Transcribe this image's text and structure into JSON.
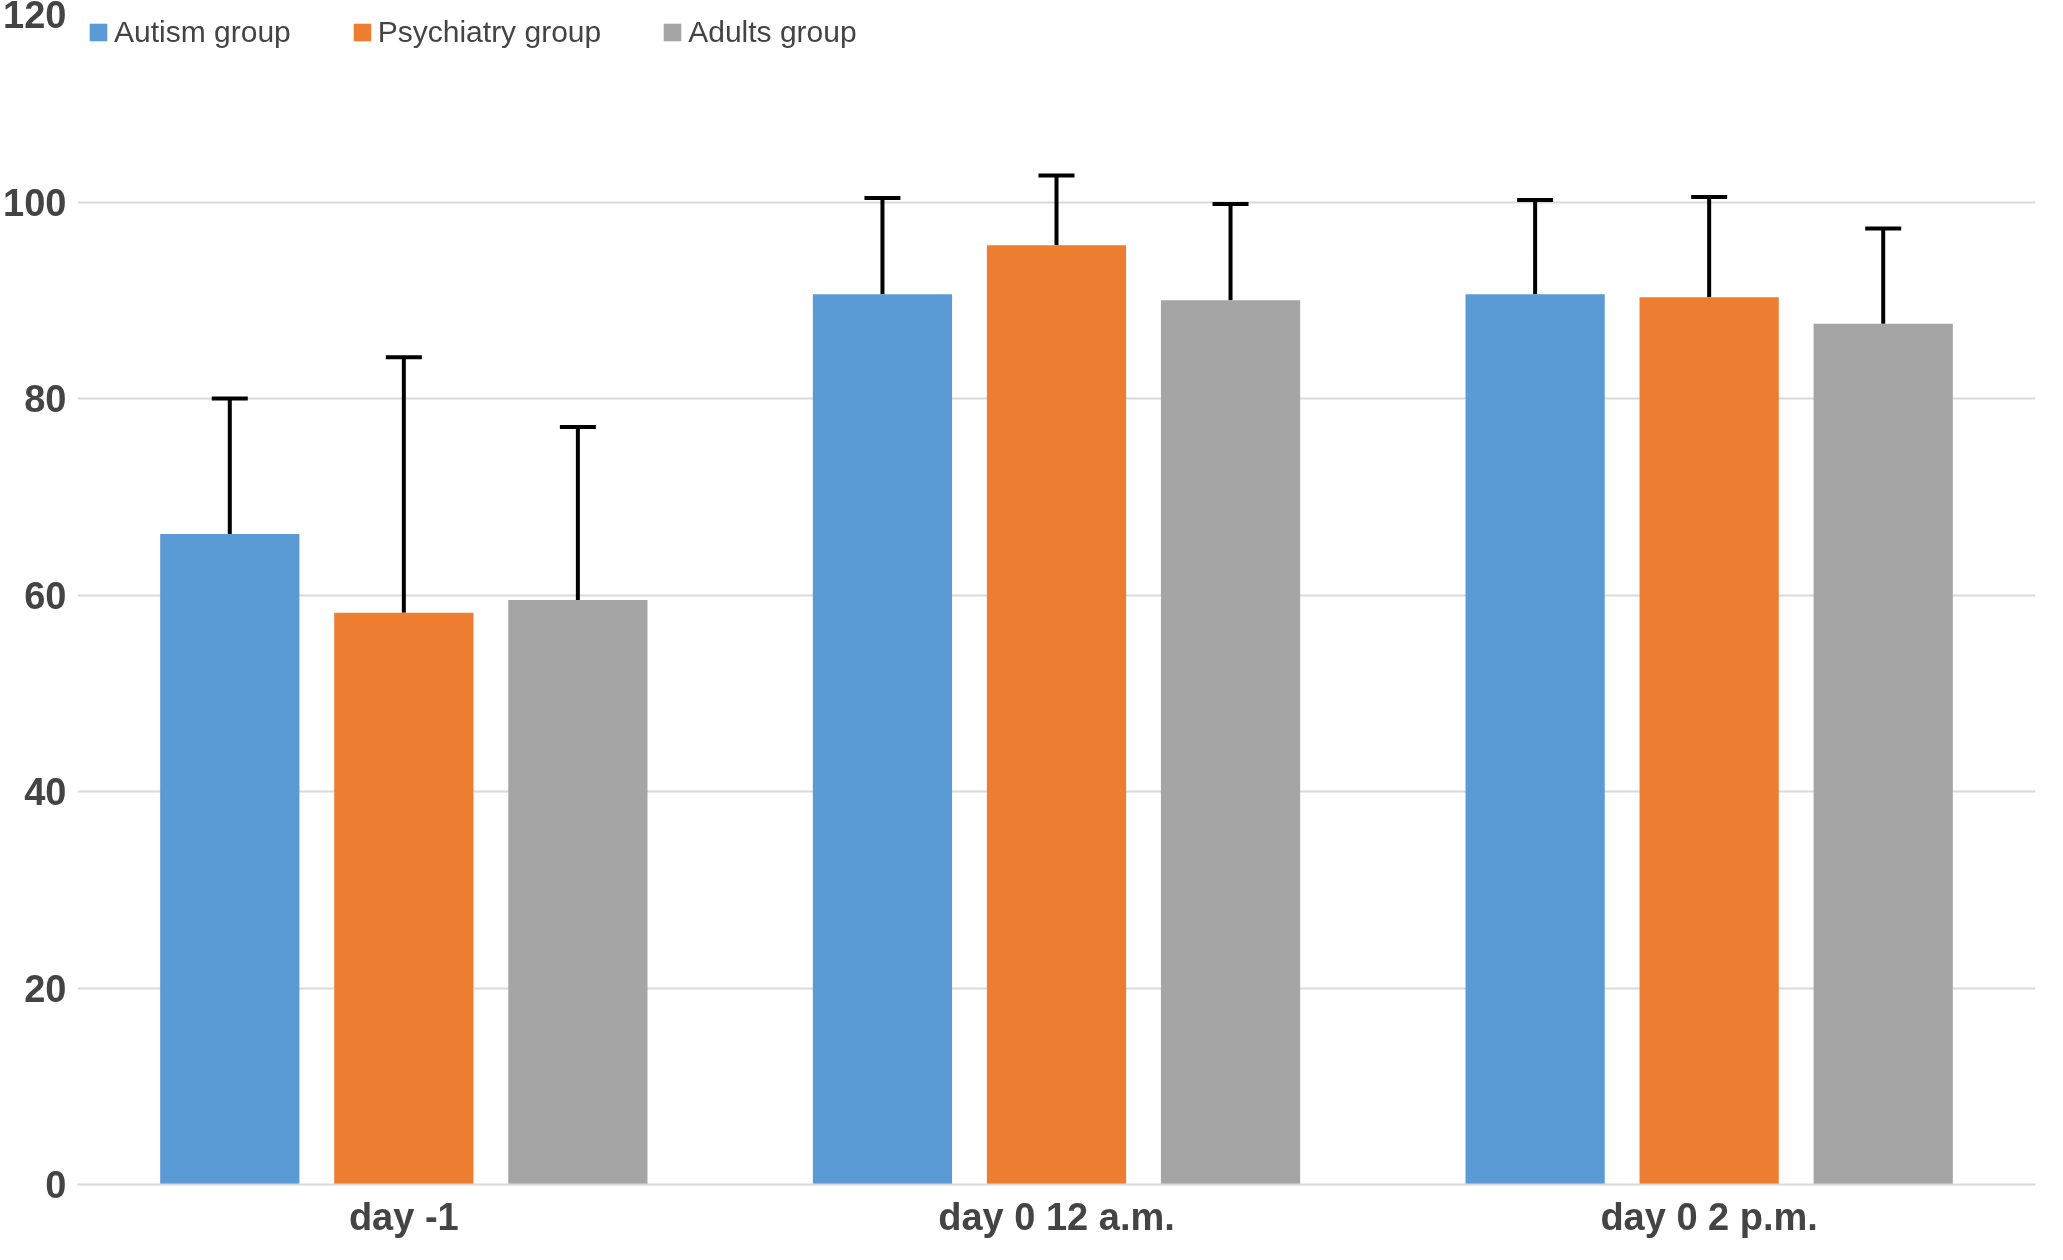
{
  "chart_data": {
    "type": "bar",
    "categories": [
      "day -1",
      "day 0 12 a.m.",
      "day 0 2 p.m."
    ],
    "series": [
      {
        "name": "Autism group",
        "color": "#5b9bd5",
        "values": [
          66.2,
          90.6,
          90.6
        ],
        "errors": [
          [
            66.2,
            80.0
          ],
          [
            90.6,
            100.4
          ],
          [
            90.6,
            100.2
          ]
        ]
      },
      {
        "name": "Psychiatry group",
        "color": "#ed7d31",
        "values": [
          58.2,
          95.6,
          90.3
        ],
        "errors": [
          [
            58.2,
            84.2
          ],
          [
            95.6,
            102.7
          ],
          [
            90.3,
            100.5
          ]
        ]
      },
      {
        "name": "Adults group",
        "color": "#a5a5a5",
        "values": [
          59.5,
          90.0,
          87.6
        ],
        "errors": [
          [
            59.5,
            77.1
          ],
          [
            90.0,
            99.8
          ],
          [
            87.6,
            97.3
          ]
        ]
      }
    ],
    "ylim": [
      0,
      120
    ],
    "yticks": [
      0,
      20,
      40,
      60,
      80,
      100,
      120
    ],
    "grid": "y",
    "legend": "top left"
  }
}
